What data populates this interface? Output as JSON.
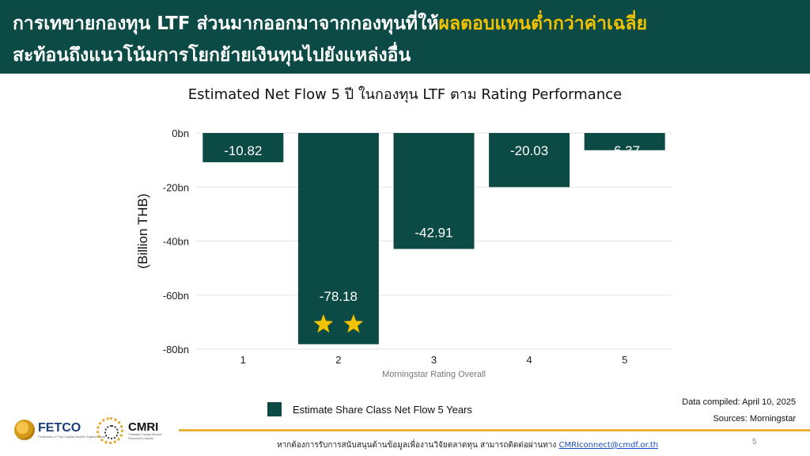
{
  "header": {
    "line1_prefix": "การเทขายกองทุน LTF ส่วนมากออกมาจากกองทุนที่ให้",
    "line1_highlight": "ผลตอบแทนต่ำกว่าค่าเฉลี่ย",
    "line2": "สะท้อนถึงแนวโน้มการโยกย้ายเงินทุนไปยังแหล่งอื่น"
  },
  "colors": {
    "banner": "#0c4a46",
    "highlight": "#f2c200",
    "bar": "#0c4a46",
    "star": "#f2c200",
    "footer_bar": "#e8b33a"
  },
  "chart_data": {
    "type": "bar",
    "title": "Estimated Net Flow 5 ปี ในกองทุน LTF ตาม Rating Performance",
    "categories": [
      "1",
      "2",
      "3",
      "4",
      "5"
    ],
    "series": [
      {
        "name": "Estimate Share Class Net Flow 5 Years",
        "values": [
          -10.82,
          -78.18,
          -42.91,
          -20.03,
          -6.37
        ]
      }
    ],
    "data_labels": [
      "-10.82",
      "-78.18",
      "-42.91",
      "-20.03",
      "-6.37"
    ],
    "xlabel": "Morningstar Rating Overall",
    "ylabel": "(Billion THB)",
    "ylim": [
      -80,
      0
    ],
    "yticks": [
      0,
      -20,
      -40,
      -60,
      -80
    ],
    "ytick_labels": [
      "0bn",
      "-20bn",
      "-40bn",
      "-60bn",
      "-80bn"
    ],
    "grid": true,
    "legend_position": "bottom",
    "annotations": [
      {
        "category": "2",
        "type": "stars",
        "count": 2
      }
    ]
  },
  "meta": {
    "data_compiled": "Data compiled:  April 10, 2025",
    "sources": "Sources:  Morningstar"
  },
  "footer": {
    "text": "หากต้องการรับการสนับสนุนด้านข้อมูลเพื่องานวิจัยตลาดทุน สามารถติดต่อผ่านทาง ",
    "email": "CMRIconnect@cmdf.or.th",
    "page_number": "5"
  },
  "logos": {
    "fetco": "FETCO",
    "fetco_sub": "Federation of Thai Capital Market Organizations",
    "cmri": "CMRI",
    "cmri_sub": "Thailand Capital Market Research Institute"
  }
}
